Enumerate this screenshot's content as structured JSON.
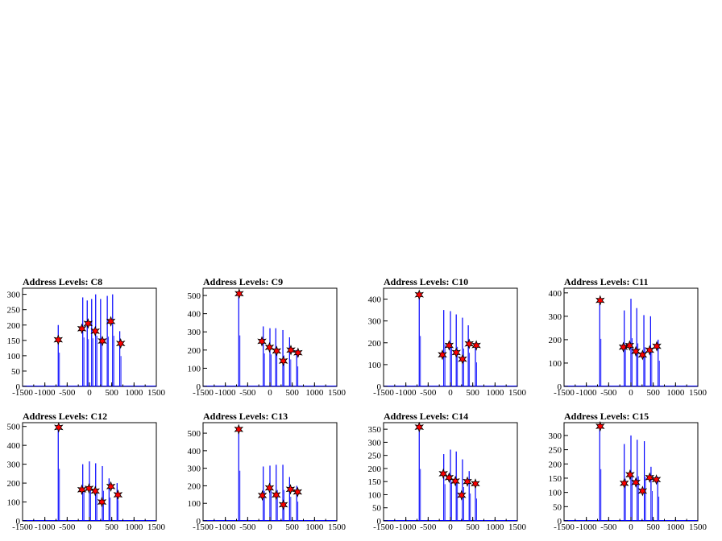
{
  "page": {
    "background": "#ffffff"
  },
  "colors": {
    "histogram": "#0000ff",
    "marker": "#ff0000",
    "marker_outline": "#000000",
    "axes": "#000000"
  },
  "chart_data": [
    {
      "type": "bar",
      "title": "Address Levels: C8",
      "xlim": [
        -1500,
        1500
      ],
      "ylim": [
        0,
        320
      ],
      "xticks": [
        -1500,
        -1000,
        -500,
        0,
        500,
        1000,
        1500
      ],
      "xtick_labels": [
        "-1500",
        "-1000",
        "-500",
        "0",
        "500",
        "1000",
        "1500"
      ],
      "yticks": [
        0,
        50,
        100,
        150,
        200,
        250,
        300
      ],
      "bars": [
        [
          -700,
          200
        ],
        [
          -150,
          290
        ],
        [
          -50,
          280
        ],
        [
          50,
          285
        ],
        [
          140,
          300
        ],
        [
          250,
          285
        ],
        [
          400,
          295
        ],
        [
          520,
          300
        ],
        [
          680,
          180
        ]
      ],
      "peaks": [
        [
          -700,
          152
        ],
        [
          -170,
          188
        ],
        [
          -30,
          205
        ],
        [
          130,
          180
        ],
        [
          290,
          148
        ],
        [
          480,
          212
        ],
        [
          700,
          140
        ]
      ]
    },
    {
      "type": "bar",
      "title": "Address Levels: C9",
      "xlim": [
        -1500,
        1500
      ],
      "ylim": [
        0,
        540
      ],
      "xticks": [
        -1500,
        -1000,
        -500,
        0,
        500,
        1000,
        1500
      ],
      "xtick_labels": [
        "-1500",
        "-1000",
        "-500",
        "0",
        "500",
        "1000",
        "1500"
      ],
      "yticks": [
        0,
        100,
        200,
        300,
        400,
        500
      ],
      "bars": [
        [
          -700,
          510
        ],
        [
          -150,
          330
        ],
        [
          0,
          320
        ],
        [
          130,
          320
        ],
        [
          290,
          310
        ],
        [
          440,
          270
        ],
        [
          600,
          200
        ]
      ],
      "peaks": [
        [
          -690,
          510
        ],
        [
          -180,
          248
        ],
        [
          -10,
          215
        ],
        [
          150,
          195
        ],
        [
          300,
          140
        ],
        [
          470,
          200
        ],
        [
          630,
          185
        ]
      ]
    },
    {
      "type": "bar",
      "title": "Address Levels: C10",
      "xlim": [
        -1500,
        1500
      ],
      "ylim": [
        0,
        450
      ],
      "xticks": [
        -1500,
        -1000,
        -500,
        0,
        500,
        1000,
        1500
      ],
      "xtick_labels": [
        "-1500",
        "-1000",
        "-500",
        "0",
        "500",
        "1000",
        "1500"
      ],
      "yticks": [
        0,
        100,
        200,
        300,
        400
      ],
      "bars": [
        [
          -700,
          420
        ],
        [
          -150,
          350
        ],
        [
          0,
          345
        ],
        [
          130,
          330
        ],
        [
          270,
          315
        ],
        [
          400,
          280
        ],
        [
          560,
          200
        ]
      ],
      "peaks": [
        [
          -700,
          420
        ],
        [
          -180,
          145
        ],
        [
          -30,
          188
        ],
        [
          130,
          155
        ],
        [
          270,
          125
        ],
        [
          420,
          195
        ],
        [
          580,
          188
        ]
      ]
    },
    {
      "type": "bar",
      "title": "Address Levels: C11",
      "xlim": [
        -1500,
        1500
      ],
      "ylim": [
        0,
        420
      ],
      "xticks": [
        -1500,
        -1000,
        -500,
        0,
        500,
        1000,
        1500
      ],
      "xtick_labels": [
        "-1500",
        "-1000",
        "-500",
        "0",
        "500",
        "1000",
        "1500"
      ],
      "yticks": [
        0,
        100,
        200,
        300,
        400
      ],
      "bars": [
        [
          -700,
          370
        ],
        [
          -150,
          325
        ],
        [
          0,
          375
        ],
        [
          130,
          335
        ],
        [
          290,
          305
        ],
        [
          440,
          300
        ],
        [
          610,
          200
        ]
      ],
      "peaks": [
        [
          -690,
          368
        ],
        [
          -170,
          168
        ],
        [
          -30,
          175
        ],
        [
          110,
          150
        ],
        [
          260,
          135
        ],
        [
          420,
          155
        ],
        [
          580,
          172
        ]
      ]
    },
    {
      "type": "bar",
      "title": "Address Levels: C12",
      "xlim": [
        -1500,
        1500
      ],
      "ylim": [
        0,
        520
      ],
      "xticks": [
        -1500,
        -1000,
        -500,
        0,
        500,
        1000,
        1500
      ],
      "xtick_labels": [
        "-1500",
        "-1000",
        "-500",
        "0",
        "500",
        "1000",
        "1500"
      ],
      "yticks": [
        0,
        100,
        200,
        300,
        400,
        500
      ],
      "bars": [
        [
          -700,
          500
        ],
        [
          -150,
          300
        ],
        [
          0,
          315
        ],
        [
          140,
          305
        ],
        [
          290,
          290
        ],
        [
          440,
          225
        ],
        [
          620,
          200
        ]
      ],
      "peaks": [
        [
          -690,
          495
        ],
        [
          -170,
          165
        ],
        [
          -10,
          172
        ],
        [
          130,
          158
        ],
        [
          280,
          100
        ],
        [
          480,
          182
        ],
        [
          640,
          138
        ]
      ]
    },
    {
      "type": "bar",
      "title": "Address Levels: C13",
      "xlim": [
        -1500,
        1500
      ],
      "ylim": [
        0,
        560
      ],
      "xticks": [
        -1500,
        -1000,
        -500,
        0,
        500,
        1000,
        1500
      ],
      "xtick_labels": [
        "-1500",
        "-1000",
        "-500",
        "0",
        "500",
        "1000",
        "1500"
      ],
      "yticks": [
        0,
        100,
        200,
        300,
        400,
        500
      ],
      "bars": [
        [
          -700,
          520
        ],
        [
          -150,
          310
        ],
        [
          0,
          315
        ],
        [
          140,
          320
        ],
        [
          290,
          320
        ],
        [
          440,
          250
        ],
        [
          600,
          200
        ]
      ],
      "peaks": [
        [
          -700,
          522
        ],
        [
          -170,
          145
        ],
        [
          -10,
          188
        ],
        [
          140,
          148
        ],
        [
          300,
          92
        ],
        [
          460,
          180
        ],
        [
          620,
          165
        ]
      ]
    },
    {
      "type": "bar",
      "title": "Address Levels: C14",
      "xlim": [
        -1500,
        1500
      ],
      "ylim": [
        0,
        375
      ],
      "xticks": [
        -1500,
        -1000,
        -500,
        0,
        500,
        1000,
        1500
      ],
      "xtick_labels": [
        "-1500",
        "-1000",
        "-500",
        "0",
        "500",
        "1000",
        "1500"
      ],
      "yticks": [
        0,
        50,
        100,
        150,
        200,
        250,
        300,
        350
      ],
      "bars": [
        [
          -700,
          360
        ],
        [
          -150,
          255
        ],
        [
          0,
          272
        ],
        [
          130,
          265
        ],
        [
          270,
          235
        ],
        [
          420,
          190
        ],
        [
          560,
          155
        ]
      ],
      "peaks": [
        [
          -700,
          358
        ],
        [
          -160,
          180
        ],
        [
          -30,
          165
        ],
        [
          110,
          152
        ],
        [
          250,
          98
        ],
        [
          380,
          150
        ],
        [
          560,
          142
        ]
      ]
    },
    {
      "type": "bar",
      "title": "Address Levels: C15",
      "xlim": [
        -1500,
        1500
      ],
      "ylim": [
        0,
        345
      ],
      "xticks": [
        -1500,
        -1000,
        -500,
        0,
        500,
        1000,
        1500
      ],
      "xtick_labels": [
        "-1500",
        "-1000",
        "-500",
        "0",
        "500",
        "1000",
        "1500"
      ],
      "yticks": [
        0,
        50,
        100,
        150,
        200,
        250,
        300
      ],
      "bars": [
        [
          -700,
          330
        ],
        [
          -150,
          270
        ],
        [
          0,
          300
        ],
        [
          140,
          285
        ],
        [
          300,
          280
        ],
        [
          450,
          190
        ],
        [
          600,
          155
        ]
      ],
      "peaks": [
        [
          -690,
          332
        ],
        [
          -150,
          132
        ],
        [
          -20,
          162
        ],
        [
          110,
          135
        ],
        [
          260,
          105
        ],
        [
          420,
          152
        ],
        [
          570,
          145
        ]
      ]
    }
  ]
}
